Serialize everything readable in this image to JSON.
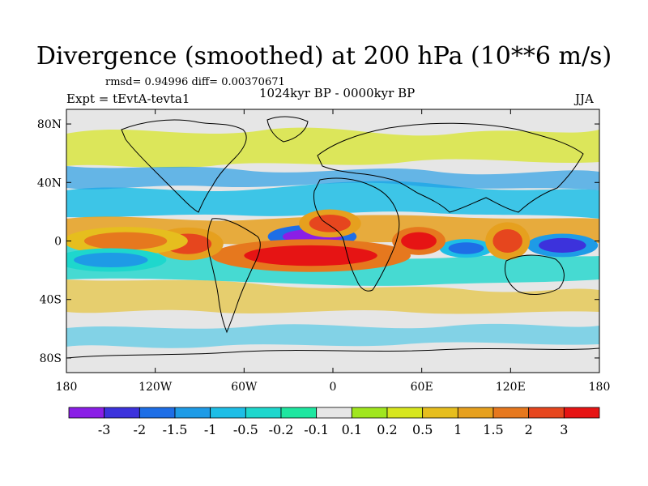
{
  "title": "Divergence (smoothed) at 200 hPa (10**6 m/s)",
  "stats": "rmsd= 0.94996 diff= 0.00370671",
  "expt": "Expt = tEvtA-tevta1",
  "period": "1024kyr BP - 0000kyr BP",
  "season": "JJA",
  "axes": {
    "x_ticks": [
      "180",
      "120W",
      "60W",
      "0",
      "60E",
      "120E",
      "180"
    ],
    "x_values": [
      -180,
      -120,
      -60,
      0,
      60,
      120,
      180
    ],
    "y_ticks": [
      "80N",
      "40N",
      "0",
      "40S",
      "80S"
    ],
    "y_values": [
      80,
      40,
      0,
      -40,
      -80
    ],
    "lon_range": [
      -180,
      180
    ],
    "lat_range": [
      -90,
      90
    ]
  },
  "colorbar": {
    "labels": [
      "-3",
      "-2",
      "-1.5",
      "-1",
      "-0.5",
      "-0.2",
      "-0.1",
      "0.1",
      "0.2",
      "0.5",
      "1",
      "1.5",
      "2",
      "3"
    ],
    "colors": [
      "#8a1ee6",
      "#3c32dc",
      "#1e6ee6",
      "#1e9be6",
      "#1ebee6",
      "#1ed7cd",
      "#1ee6a0",
      "#e6e6e6",
      "#a0e61e",
      "#d7e61e",
      "#e6be1e",
      "#e6a01e",
      "#e6781e",
      "#e6461e",
      "#e61414"
    ]
  },
  "features": [
    {
      "name": "strong-convergence-west-africa",
      "lon": -14,
      "lat": 3,
      "rx": 20,
      "ry": 5,
      "level": 0
    },
    {
      "name": "divergence-gulf-guinea",
      "lon": -15,
      "lat": -10,
      "rx": 45,
      "ry": 7,
      "level": 14
    },
    {
      "name": "divergence-sahel",
      "lon": -2,
      "lat": 12,
      "rx": 14,
      "ry": 6,
      "level": 13
    },
    {
      "name": "divergence-east-pacific",
      "lon": -98,
      "lat": -2,
      "rx": 16,
      "ry": 7,
      "level": 13
    },
    {
      "name": "divergence-central-pacific",
      "lon": -140,
      "lat": 0,
      "rx": 28,
      "ry": 6,
      "level": 12
    },
    {
      "name": "convergence-west-pacific",
      "lon": 155,
      "lat": -3,
      "rx": 16,
      "ry": 5,
      "level": 1
    },
    {
      "name": "convergence-indian-ocean",
      "lon": 90,
      "lat": -5,
      "rx": 12,
      "ry": 4,
      "level": 2
    },
    {
      "name": "divergence-indonesia",
      "lon": 118,
      "lat": 0,
      "rx": 10,
      "ry": 8,
      "level": 13
    },
    {
      "name": "divergence-east-africa",
      "lon": 58,
      "lat": 0,
      "rx": 12,
      "ry": 6,
      "level": 14
    },
    {
      "name": "convergence-south-pacific",
      "lon": -150,
      "lat": -13,
      "rx": 25,
      "ry": 5,
      "level": 3
    }
  ]
}
